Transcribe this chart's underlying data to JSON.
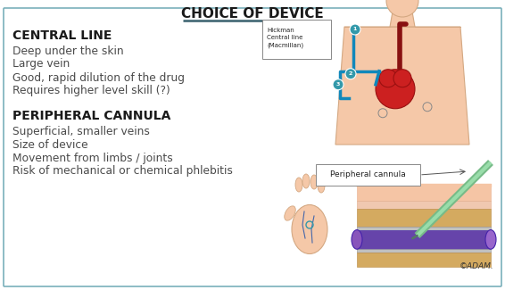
{
  "title": "CHOICE OF DEVICE",
  "title_color": "#1a1a1a",
  "title_underline_color": "#4a6e7a",
  "background_color": "#ffffff",
  "border_color": "#7ab0bb",
  "section1_header": "CENTRAL LINE",
  "section1_bullets": [
    "Deep under the skin",
    "Large vein",
    "Good, rapid dilution of the drug",
    "Requires higher level skill (?)"
  ],
  "section2_header": "PERIPHERAL CANNULA",
  "section2_bullets": [
    "Superficial, smaller veins",
    "Size of device",
    "Movement from limbs / joints",
    "Risk of mechanical or chemical phlebitis"
  ],
  "header_color": "#1a1a1a",
  "bullet_color": "#4a4a4a",
  "header_fontsize": 10,
  "bullet_fontsize": 8.8,
  "adam_watermark": "©ADAM.",
  "central_line_img_label": "Hickman\nCentral line\n(Macmillan)",
  "peripheral_cannula_label": "Peripheral cannula",
  "skin_color": "#f5c8a8",
  "skin_edge": "#d4a882",
  "heart_color": "#cc2020",
  "heart_edge": "#991010",
  "vein_color": "#9955aa",
  "vein_edge": "#7733aa",
  "tube_color": "#1188bb",
  "needle_color": "#55aa66",
  "layer1_color": "#f5c8a0",
  "layer2_color": "#e8a87a",
  "layer3_color": "#d4a050",
  "layer4_color": "#cc9944",
  "layer5_color": "#c08838"
}
